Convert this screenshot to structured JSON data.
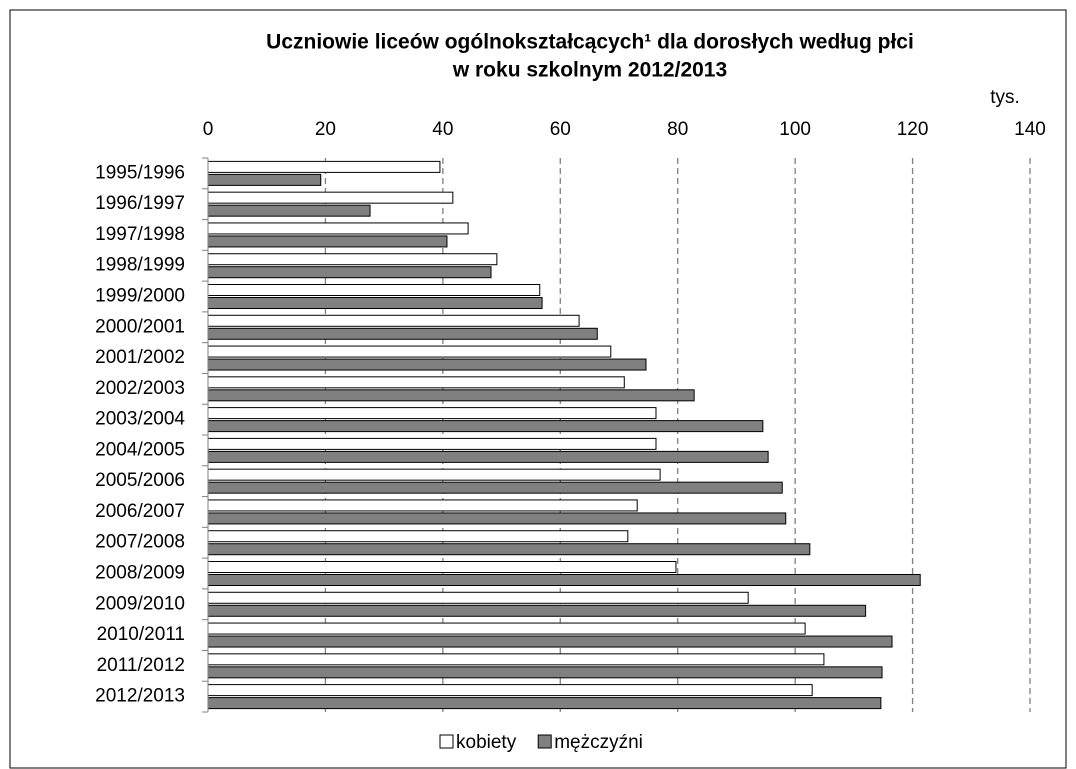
{
  "chart_data": {
    "type": "hbar",
    "title_lines": [
      "Uczniowie liceów ogólnokształcących¹ dla dorosłych według płci",
      "w roku szkolnym 2012/2013"
    ],
    "unit": "tys.",
    "categories": [
      "1995/1996",
      "1996/1997",
      "1997/1998",
      "1998/1999",
      "1999/2000",
      "2000/2001",
      "2001/2002",
      "2002/2003",
      "2003/2004",
      "2004/2005",
      "2005/2006",
      "2006/2007",
      "2007/2008",
      "2008/2009",
      "2009/2010",
      "2010/2011",
      "2011/2012",
      "2012/2013"
    ],
    "series": [
      {
        "name": "kobiety",
        "color": "#ffffff",
        "values": [
          39.5,
          41.7,
          44.3,
          49.2,
          56.5,
          63.2,
          68.6,
          70.9,
          76.3,
          76.3,
          77.0,
          73.1,
          71.5,
          79.7,
          92.0,
          101.7,
          104.9,
          102.9
        ]
      },
      {
        "name": "mężczyźni",
        "color": "#808080",
        "values": [
          19.2,
          27.6,
          40.7,
          48.2,
          56.9,
          66.3,
          74.6,
          82.8,
          94.5,
          95.4,
          97.8,
          98.4,
          102.5,
          121.3,
          112.0,
          116.5,
          114.8,
          114.6
        ]
      }
    ],
    "xlim": [
      0,
      140
    ],
    "xticks": [
      0,
      20,
      40,
      60,
      80,
      100,
      120,
      140
    ],
    "grid": true,
    "legend": "bottom"
  }
}
